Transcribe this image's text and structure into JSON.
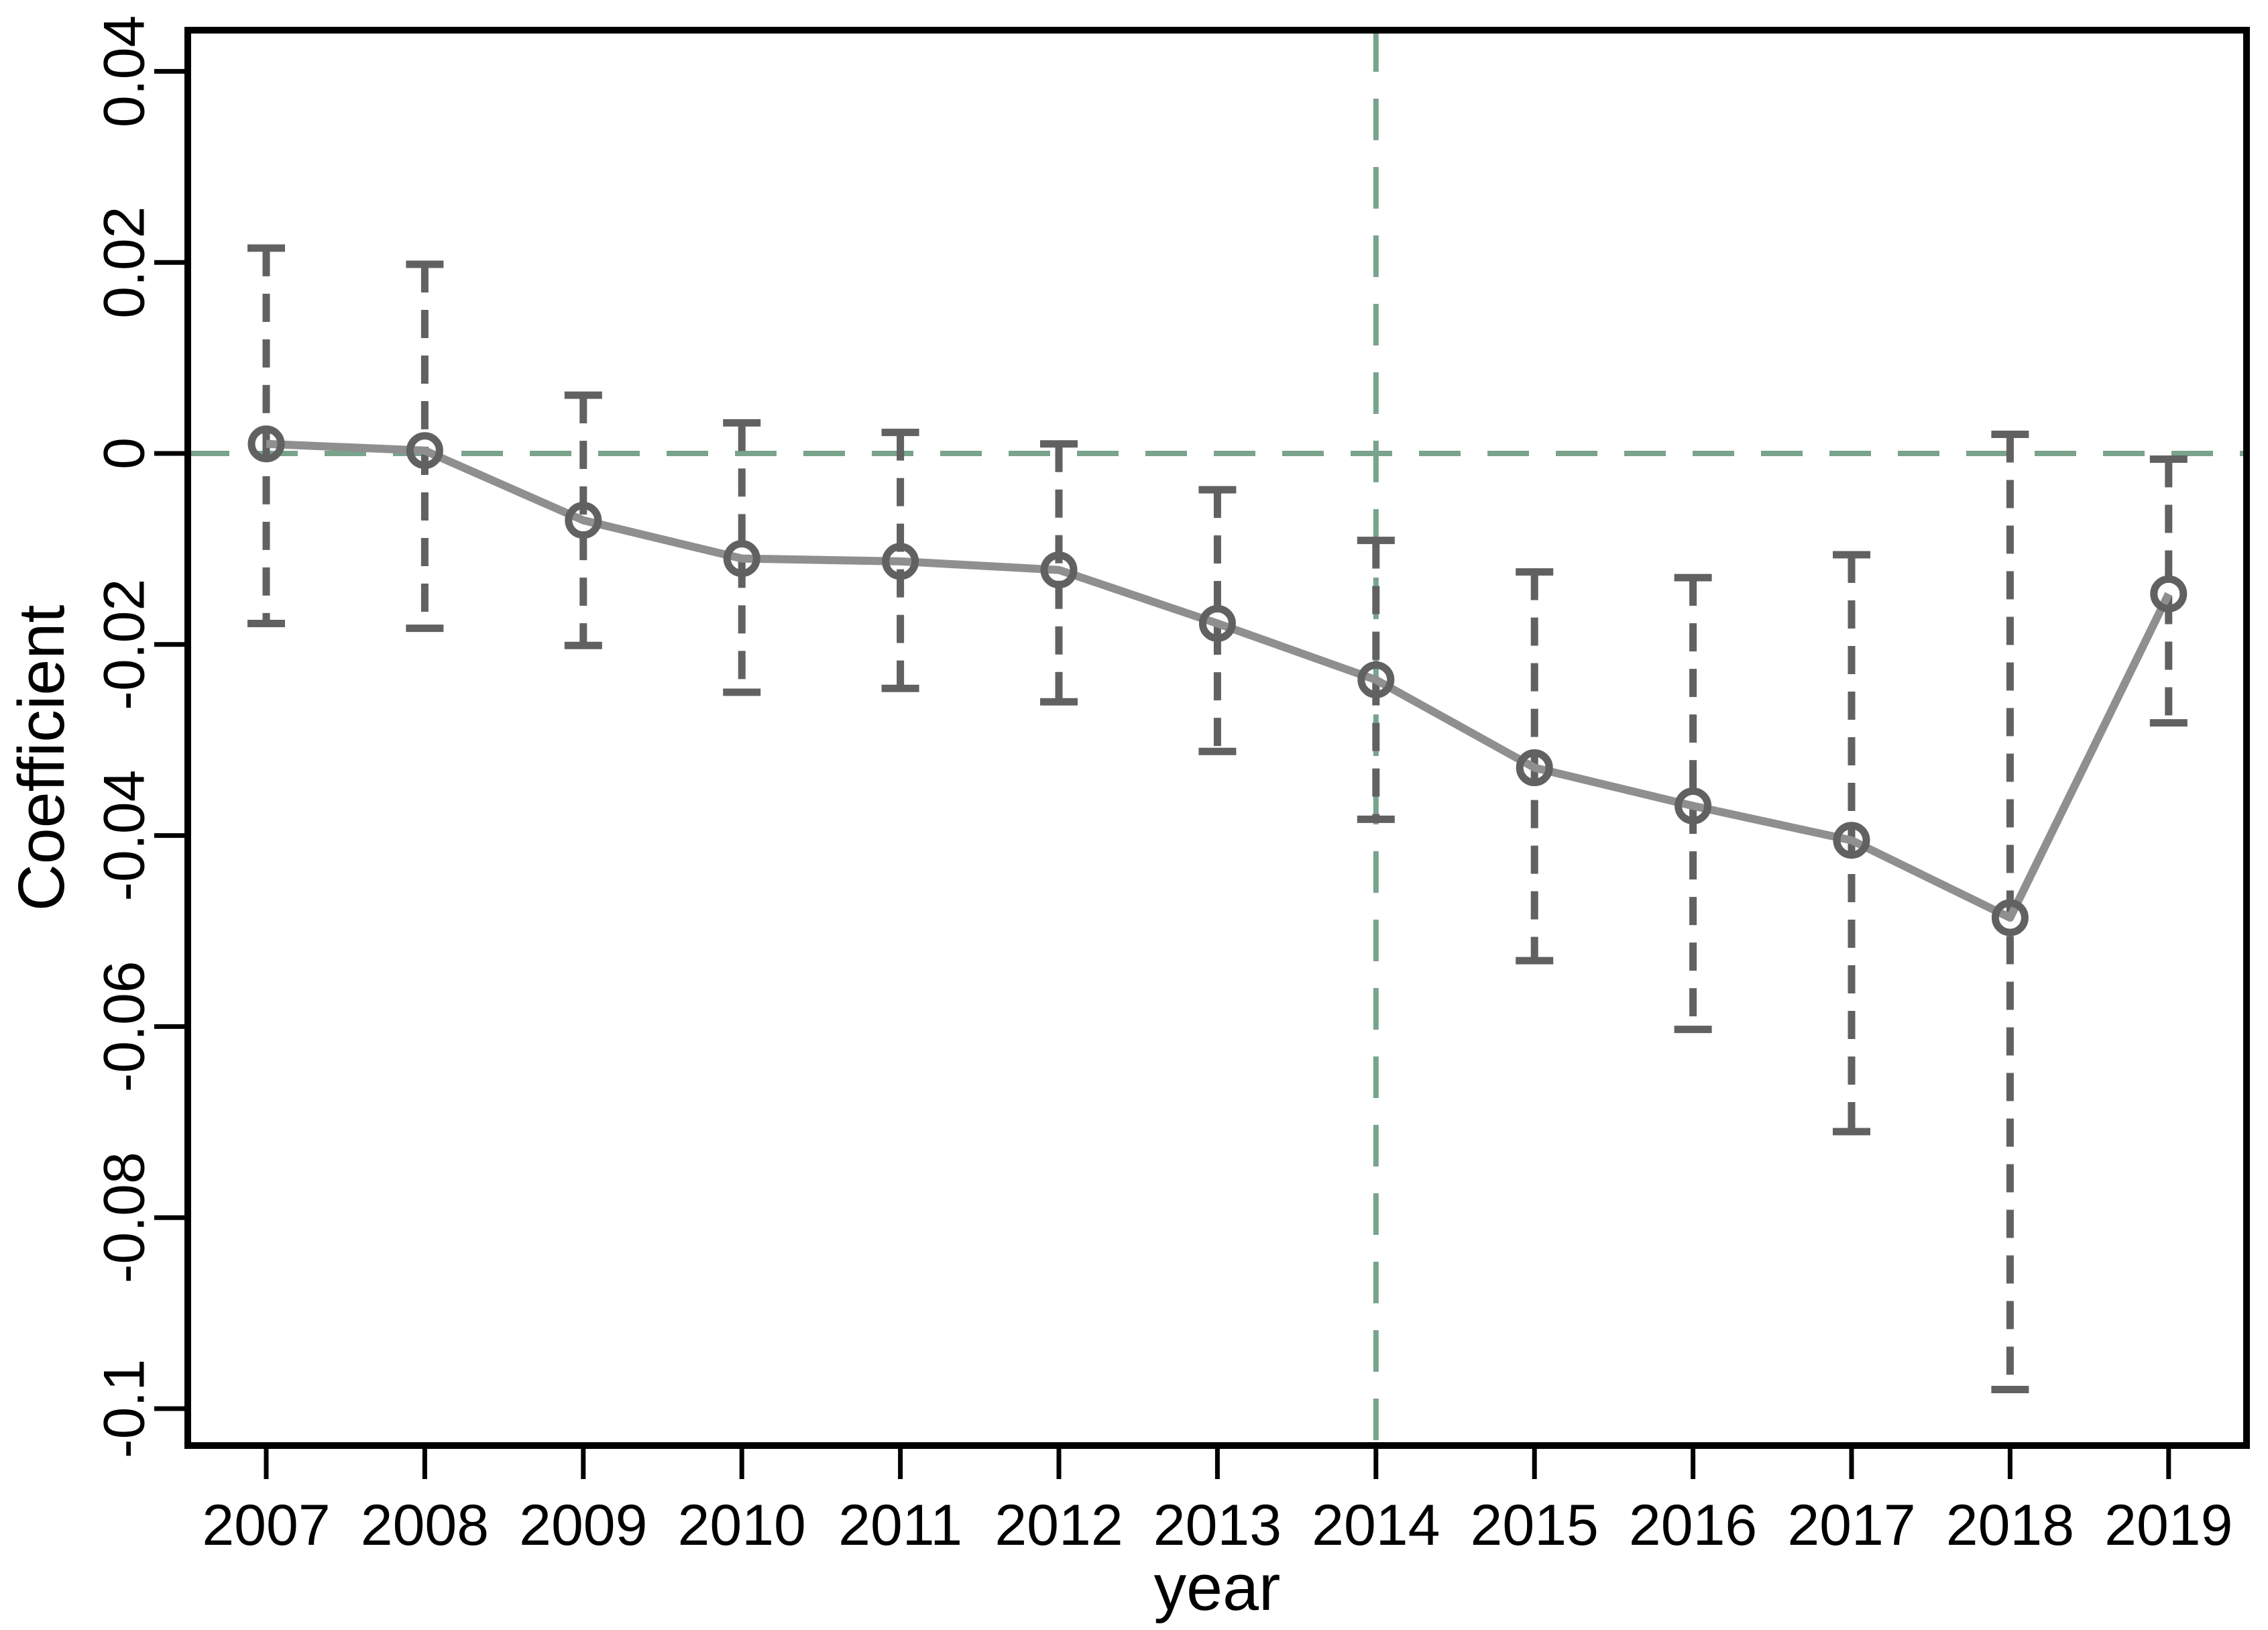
{
  "chart_data": {
    "type": "line",
    "title": "",
    "xlabel": "year",
    "ylabel": "Coefficient",
    "x": [
      2007,
      2008,
      2009,
      2010,
      2011,
      2012,
      2013,
      2014,
      2015,
      2016,
      2017,
      2018,
      2019
    ],
    "xtick_labels": [
      "2007",
      "2008",
      "2009",
      "2010",
      "2011",
      "2012",
      "2013",
      "2014",
      "2015",
      "2016",
      "2017",
      "2018",
      "2019"
    ],
    "series": [
      {
        "name": "coefficient",
        "values": [
          0.001,
          0.0003,
          -0.007,
          -0.011,
          -0.0113,
          -0.0122,
          -0.0178,
          -0.0237,
          -0.0329,
          -0.0369,
          -0.0405,
          -0.0486,
          -0.0147
        ]
      }
    ],
    "ci_upper": [
      0.0215,
      0.0198,
      0.0061,
      0.0032,
      0.0022,
      0.001,
      -0.0038,
      -0.0091,
      -0.0124,
      -0.013,
      -0.0106,
      0.002,
      -0.0006
    ],
    "ci_lower": [
      -0.0178,
      -0.0183,
      -0.0201,
      -0.025,
      -0.0246,
      -0.026,
      -0.0312,
      -0.0383,
      -0.0531,
      -0.0603,
      -0.071,
      -0.098,
      -0.0282
    ],
    "yticks": [
      0.04,
      0.02,
      0,
      -0.02,
      -0.04,
      -0.06,
      -0.08,
      -0.1
    ],
    "ytick_labels": [
      "0.04",
      "0.02",
      "0",
      "-0.02",
      "-0.04",
      "-0.06",
      "-0.08",
      "-0.1"
    ],
    "ylim": [
      -0.104,
      0.0443
    ],
    "xlim": [
      2006.5,
      2019.5
    ],
    "grid": false,
    "legend": null,
    "marker": "open-circle",
    "error_bar_style": "dashed-with-caps",
    "reference_lines": {
      "horizontal_y": 0,
      "vertical_x": 2014
    },
    "colors": {
      "line": "#8f8f8f",
      "marker": "#616161",
      "error_bar": "#616161",
      "reference_line": "#7aa38c",
      "axis": "#000000",
      "background": "#ffffff"
    }
  }
}
